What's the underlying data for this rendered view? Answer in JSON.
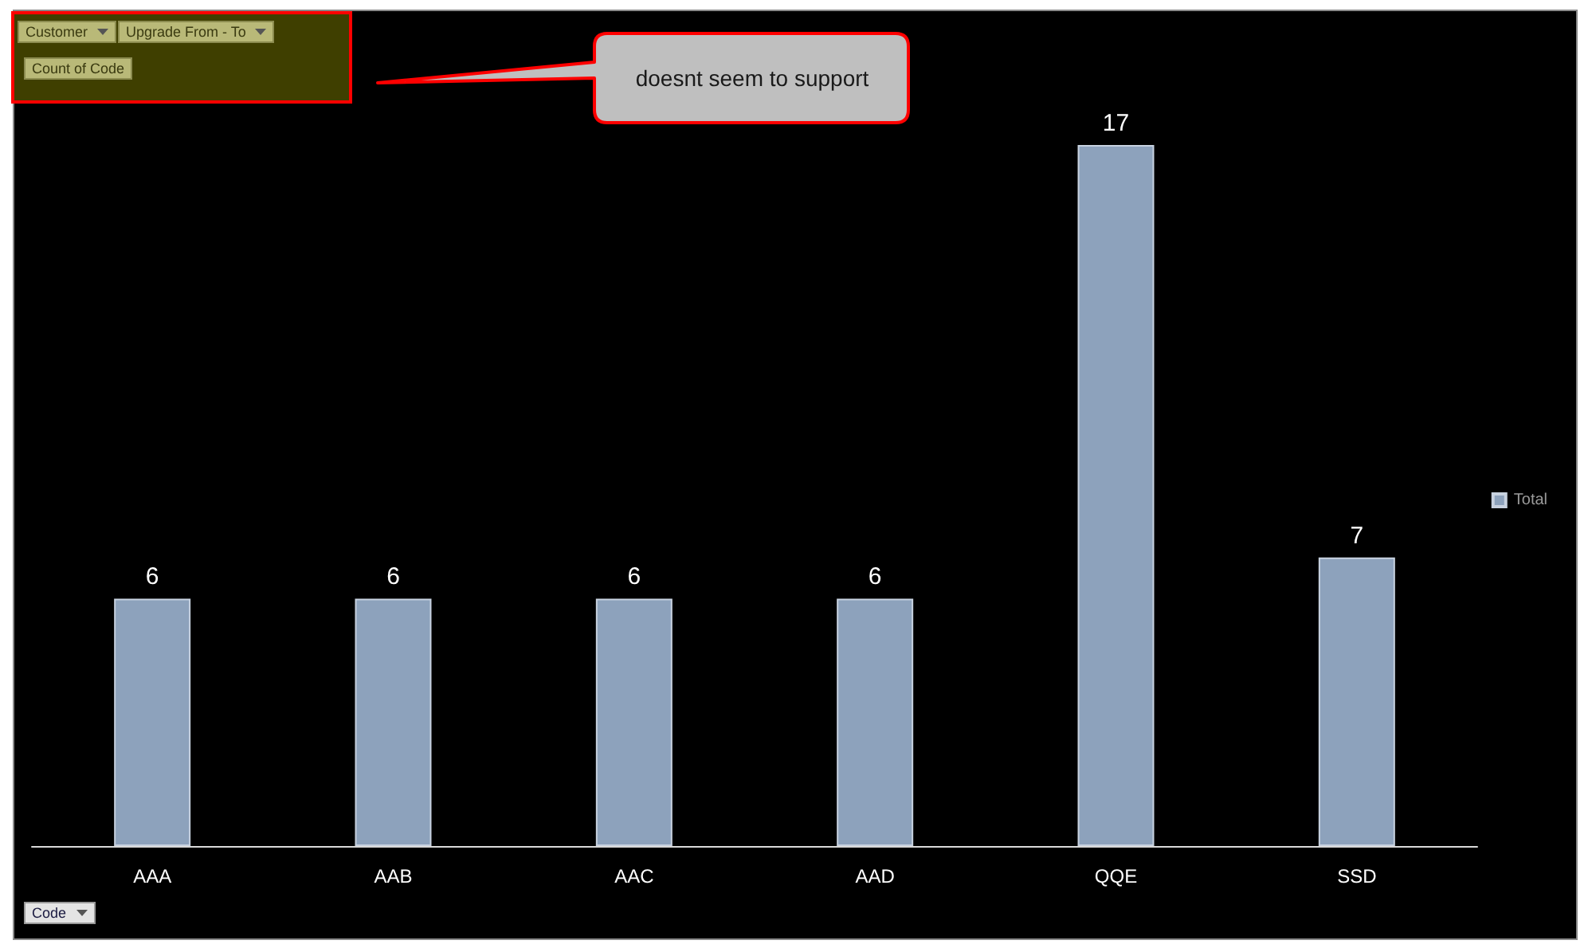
{
  "chart_data": {
    "type": "bar",
    "xlabel": "Code",
    "ylabel": "Count of Code",
    "annotations": [
      "Customer",
      "Upgrade From - To",
      "doesnt seem to support"
    ],
    "categories": [
      "AAA",
      "AAB",
      "AAC",
      "AAD",
      "QQE",
      "SSD"
    ],
    "series": [
      {
        "name": "Total",
        "color": "#8da2bc",
        "values": [
          6,
          6,
          6,
          6,
          17,
          7
        ]
      }
    ],
    "data_labels": true,
    "legend": "right"
  }
}
